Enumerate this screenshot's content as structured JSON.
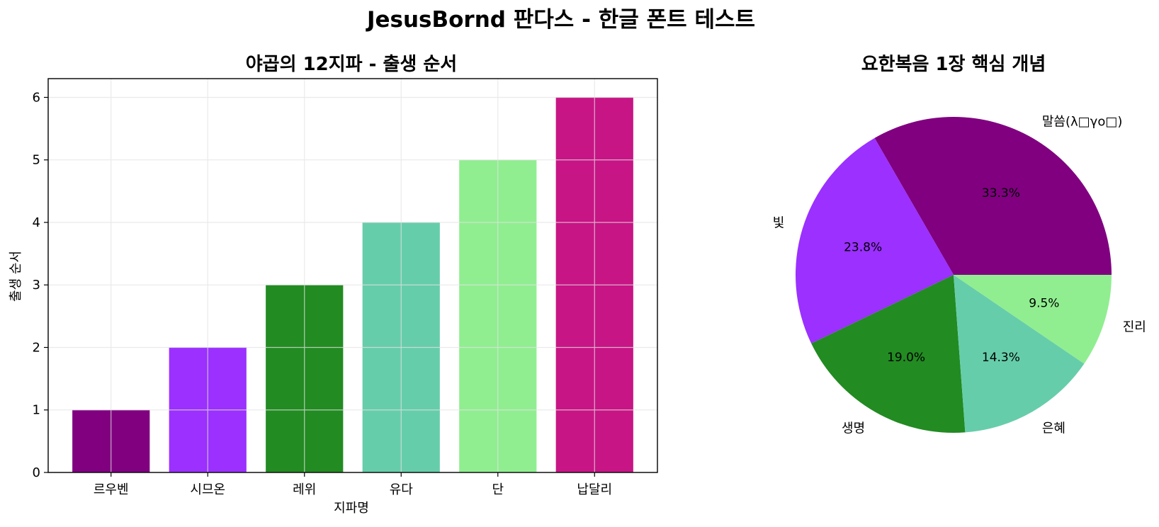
{
  "figure": {
    "suptitle": "JesusBornd 판다스 - 한글 폰트 테스트"
  },
  "chart_data": [
    {
      "type": "bar",
      "title": "야곱의 12지파 - 출생 순서",
      "xlabel": "지파명",
      "ylabel": "출생 순서",
      "categories": [
        "르우벤",
        "시므온",
        "레위",
        "유다",
        "단",
        "납달리"
      ],
      "values": [
        1,
        2,
        3,
        4,
        5,
        6
      ],
      "colors": [
        "#800080",
        "#9b30ff",
        "#228b22",
        "#66cdaa",
        "#90ee90",
        "#c71585"
      ],
      "ylim": [
        0,
        6.3
      ],
      "yticks": [
        "0",
        "1",
        "2",
        "3",
        "4",
        "5",
        "6"
      ],
      "grid": true
    },
    {
      "type": "pie",
      "title": "요한복음 1장 핵심 개념",
      "labels": [
        "말씀(λ□γο□)",
        "빛",
        "생명",
        "은혜",
        "진리"
      ],
      "values": [
        33.3,
        23.8,
        19.0,
        14.3,
        9.5
      ],
      "pct_labels": [
        "33.3%",
        "23.8%",
        "19.0%",
        "14.3%",
        "9.5%"
      ],
      "colors": [
        "#800080",
        "#9b30ff",
        "#228b22",
        "#66cdaa",
        "#90ee90"
      ],
      "startangle": 0,
      "direction": "counterclockwise"
    }
  ]
}
